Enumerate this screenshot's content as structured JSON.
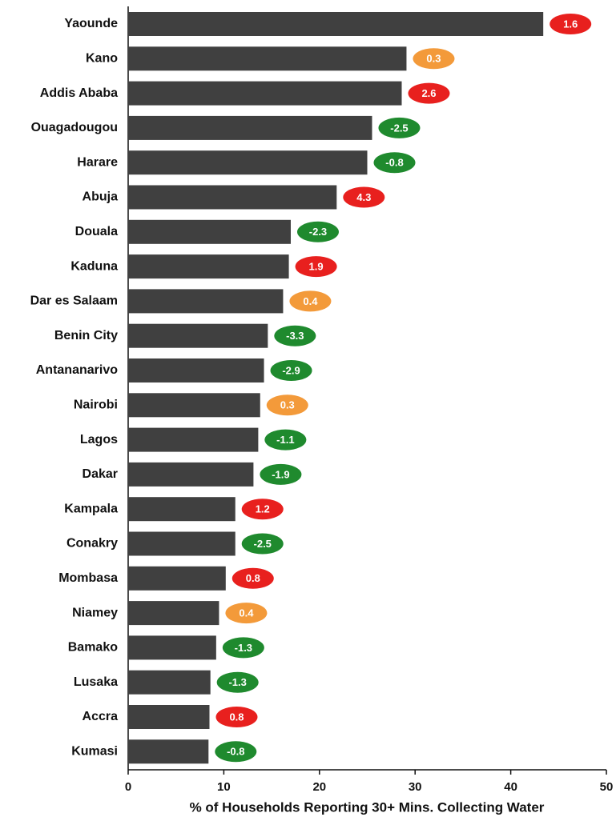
{
  "chart_data": {
    "type": "bar",
    "orientation": "horizontal",
    "xlabel": "% of Households Reporting 30+ Mins. Collecting Water",
    "categories": [
      "Yaounde",
      "Kano",
      "Addis Ababa",
      "Ouagadougou",
      "Harare",
      "Abuja",
      "Douala",
      "Kaduna",
      "Dar es Salaam",
      "Benin City",
      "Antananarivo",
      "Nairobi",
      "Lagos",
      "Dakar",
      "Kampala",
      "Conakry",
      "Mombasa",
      "Niamey",
      "Bamako",
      "Lusaka",
      "Accra",
      "Kumasi"
    ],
    "values": [
      43.4,
      29.1,
      28.6,
      25.5,
      25.0,
      21.8,
      17.0,
      16.8,
      16.2,
      14.6,
      14.2,
      13.8,
      13.6,
      13.1,
      11.2,
      11.2,
      10.2,
      9.5,
      9.2,
      8.6,
      8.5,
      8.4
    ],
    "color": "#404040",
    "annotations": {
      "values": [
        1.6,
        0.3,
        2.6,
        -2.5,
        -0.8,
        4.3,
        -2.3,
        1.9,
        0.4,
        -3.3,
        -2.9,
        0.3,
        -1.1,
        -1.9,
        1.2,
        -2.5,
        0.8,
        0.4,
        -1.3,
        -1.3,
        0.8,
        -0.8
      ],
      "colors": [
        "#e8201e",
        "#f39a3a",
        "#e8201e",
        "#1f8a2e",
        "#1f8a2e",
        "#e8201e",
        "#1f8a2e",
        "#e8201e",
        "#f39a3a",
        "#1f8a2e",
        "#1f8a2e",
        "#f39a3a",
        "#1f8a2e",
        "#1f8a2e",
        "#e8201e",
        "#1f8a2e",
        "#e8201e",
        "#f39a3a",
        "#1f8a2e",
        "#1f8a2e",
        "#e8201e",
        "#1f8a2e"
      ]
    },
    "xlim": [
      0,
      50
    ],
    "xticks": [
      0,
      10,
      20,
      30,
      40,
      50
    ]
  }
}
